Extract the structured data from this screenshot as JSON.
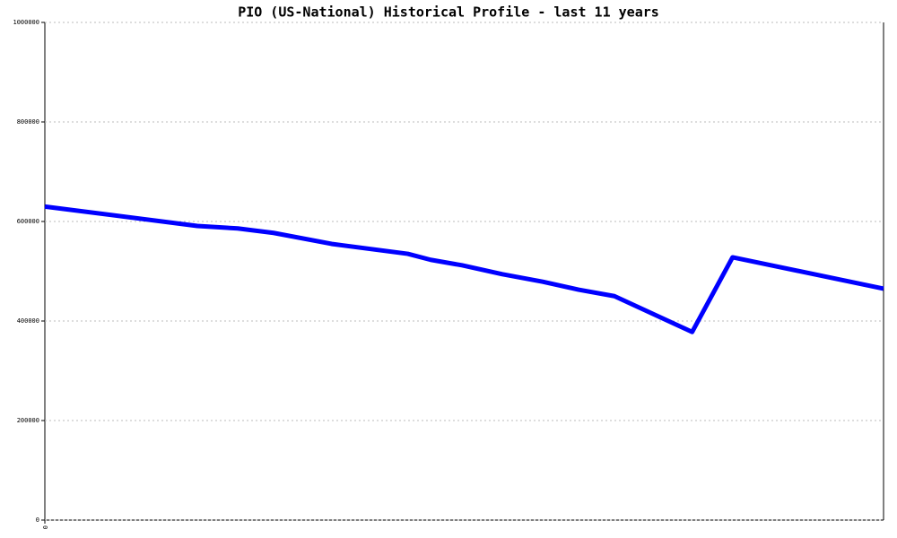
{
  "chart_data": {
    "type": "line",
    "title": "PIO (US-National) Historical Profile - last 11 years",
    "x": [
      0,
      2,
      2.53,
      3,
      3.76,
      4.76,
      5.06,
      5.47,
      6,
      6.53,
      7,
      7.47,
      8.49,
      9.02,
      11
    ],
    "series": [
      {
        "color": "#0000ff",
        "values": [
          630000,
          591000,
          586000,
          577000,
          555000,
          535000,
          523000,
          512000,
          494000,
          479000,
          463000,
          450000,
          378000,
          528000,
          465000
        ]
      }
    ],
    "xlim": [
      0,
      11
    ],
    "xticks": [
      0
    ],
    "ylim": [
      0,
      1000000
    ],
    "yticks": [
      0,
      200000,
      400000,
      600000,
      800000,
      1000000
    ],
    "grid": true
  }
}
